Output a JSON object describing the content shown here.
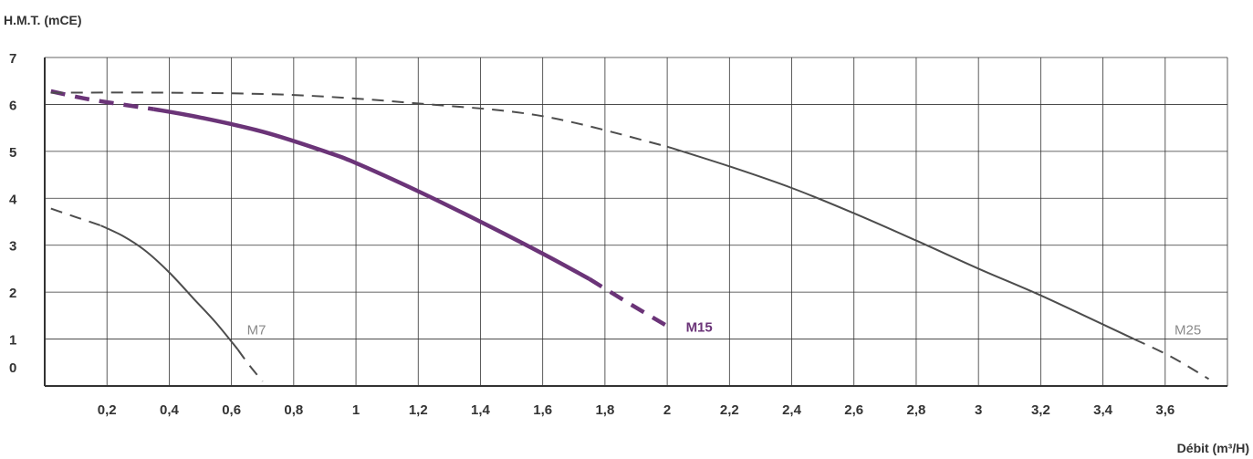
{
  "chart_data": {
    "type": "line",
    "xlabel": "Débit (m³/H)",
    "ylabel": "H.M.T. (mCE)",
    "xlim": [
      0,
      3.8
    ],
    "ylim": [
      0,
      7
    ],
    "x_ticks": [
      0.2,
      0.4,
      0.6,
      0.8,
      1,
      1.2,
      1.4,
      1.6,
      1.8,
      2,
      2.2,
      2.4,
      2.6,
      2.8,
      3,
      3.2,
      3.4,
      3.6
    ],
    "x_tick_labels": [
      "0,2",
      "0,4",
      "0,6",
      "0,8",
      "1",
      "1,2",
      "1,4",
      "1,6",
      "1,8",
      "2",
      "2,2",
      "2,4",
      "2,6",
      "2,8",
      "3",
      "3,2",
      "3,4",
      "3,6"
    ],
    "y_ticks": [
      0,
      1,
      2,
      3,
      4,
      5,
      6,
      7
    ],
    "y_tick_labels": [
      "0",
      "1",
      "2",
      "3",
      "4",
      "5",
      "6",
      "7"
    ],
    "grid": true,
    "colors": {
      "grey": "#4d4d4d",
      "purple": "#6b3478",
      "grid": "#333333"
    },
    "series": [
      {
        "name": "M7",
        "color": "#4d4d4d",
        "width": 2,
        "label_point": [
          0.65,
          1.2
        ],
        "dashed_start": [
          [
            0.02,
            3.78
          ],
          [
            0.1,
            3.6
          ],
          [
            0.18,
            3.42
          ]
        ],
        "solid": [
          [
            0.18,
            3.42
          ],
          [
            0.25,
            3.2
          ],
          [
            0.32,
            2.9
          ],
          [
            0.4,
            2.42
          ],
          [
            0.48,
            1.85
          ],
          [
            0.55,
            1.35
          ],
          [
            0.62,
            0.78
          ]
        ],
        "dashed_end": [
          [
            0.62,
            0.78
          ],
          [
            0.66,
            0.42
          ],
          [
            0.7,
            0.1
          ]
        ]
      },
      {
        "name": "M15",
        "color": "#6b3478",
        "width": 4.5,
        "bold_label": true,
        "label_point": [
          2.06,
          1.25
        ],
        "dashed_start": [
          [
            0.02,
            6.28
          ],
          [
            0.15,
            6.1
          ],
          [
            0.35,
            5.9
          ]
        ],
        "solid": [
          [
            0.35,
            5.9
          ],
          [
            0.5,
            5.72
          ],
          [
            0.7,
            5.42
          ],
          [
            0.9,
            5.0
          ],
          [
            1.0,
            4.75
          ],
          [
            1.2,
            4.15
          ],
          [
            1.4,
            3.5
          ],
          [
            1.6,
            2.82
          ],
          [
            1.75,
            2.28
          ]
        ],
        "dashed_end": [
          [
            1.75,
            2.28
          ],
          [
            1.88,
            1.75
          ],
          [
            2.02,
            1.2
          ]
        ]
      },
      {
        "name": "M25",
        "color": "#4d4d4d",
        "width": 2,
        "label_point": [
          3.63,
          1.2
        ],
        "dashed_start": [
          [
            0.02,
            6.25
          ],
          [
            0.4,
            6.25
          ],
          [
            0.8,
            6.2
          ],
          [
            1.2,
            6.02
          ],
          [
            1.6,
            5.75
          ],
          [
            2.0,
            5.1
          ]
        ],
        "solid": [
          [
            2.0,
            5.1
          ],
          [
            2.2,
            4.68
          ],
          [
            2.4,
            4.22
          ],
          [
            2.6,
            3.68
          ],
          [
            2.8,
            3.1
          ],
          [
            3.0,
            2.5
          ],
          [
            3.2,
            1.93
          ],
          [
            3.5,
            1.0
          ]
        ],
        "dashed_end": [
          [
            3.5,
            1.0
          ],
          [
            3.62,
            0.62
          ],
          [
            3.74,
            0.15
          ]
        ]
      }
    ]
  }
}
